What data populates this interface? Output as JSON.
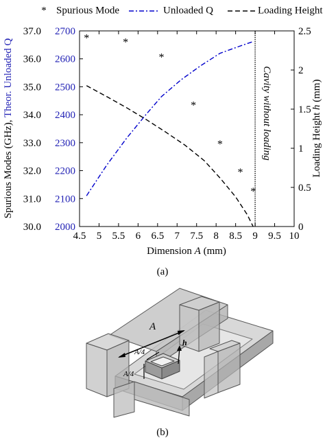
{
  "chart_data": {
    "type": "line",
    "title": "",
    "xlabel_prefix": "Dimension ",
    "xlabel_var": "A",
    "xlabel_suffix": " (mm)",
    "ylabel_left1": "Spurious Modes (GHz), ",
    "ylabel_left2": "Theor. Unloaded Q",
    "ylabel_right_prefix": "Loading Height ",
    "ylabel_right_var": "h",
    "ylabel_right_suffix": " (mm)",
    "xlim": [
      4.5,
      10
    ],
    "xticks": [
      "4.5",
      "5",
      "5.5",
      "6",
      "6.5",
      "7",
      "7.5",
      "8",
      "8.5",
      "9",
      "9.5",
      "10"
    ],
    "ylim_spurious": [
      30,
      37
    ],
    "yticks_spurious": [
      "30.0",
      "31.0",
      "32.0",
      "33.0",
      "34.0",
      "35.0",
      "36.0",
      "37.0"
    ],
    "ylim_q": [
      2000,
      2700
    ],
    "yticks_q": [
      "2000",
      "2100",
      "2200",
      "2300",
      "2400",
      "2500",
      "2600",
      "2700"
    ],
    "ylim_h": [
      0,
      2.5
    ],
    "yticks_h": [
      "0",
      "0.5",
      "1",
      "1.5",
      "2",
      "2.5"
    ],
    "grid": false,
    "legend_position": "top",
    "series": [
      {
        "name": "Spurious Mode",
        "style": "markers",
        "axis": "spurious",
        "color": "#000000",
        "x": [
          4.68,
          5.68,
          6.6,
          7.42,
          8.1,
          8.62,
          8.95
        ],
        "y": [
          36.74,
          36.6,
          36.06,
          34.34,
          32.95,
          31.94,
          31.25
        ]
      },
      {
        "name": "Unloaded Q",
        "style": "dash-dot",
        "axis": "q",
        "color": "#0000cc",
        "x": [
          4.68,
          5.2,
          5.7,
          6.2,
          6.6,
          7.1,
          7.6,
          8.1,
          8.6,
          8.95
        ],
        "y": [
          2110,
          2220,
          2315,
          2400,
          2465,
          2525,
          2575,
          2620,
          2645,
          2662
        ]
      },
      {
        "name": "Loading Height",
        "style": "dashed",
        "axis": "h",
        "color": "#000000",
        "x": [
          4.68,
          5.2,
          5.7,
          6.2,
          6.7,
          7.2,
          7.7,
          8.1,
          8.5,
          8.8,
          8.95
        ],
        "y": [
          1.8,
          1.66,
          1.52,
          1.37,
          1.21,
          1.04,
          0.84,
          0.62,
          0.38,
          0.15,
          0.0
        ]
      }
    ],
    "annotation_line_x": 9.0,
    "annotation_text": "Cavity without loading"
  },
  "figure_a_caption": "(a)",
  "diagram": {
    "label_A": "A",
    "label_A4_top": "A/4",
    "label_A4_side": "A/4",
    "label_h": "h",
    "caption": "(b)"
  },
  "colors": {
    "q_axis": "#1f1fb4",
    "q_line": "#0000cc",
    "ink": "#000000"
  }
}
